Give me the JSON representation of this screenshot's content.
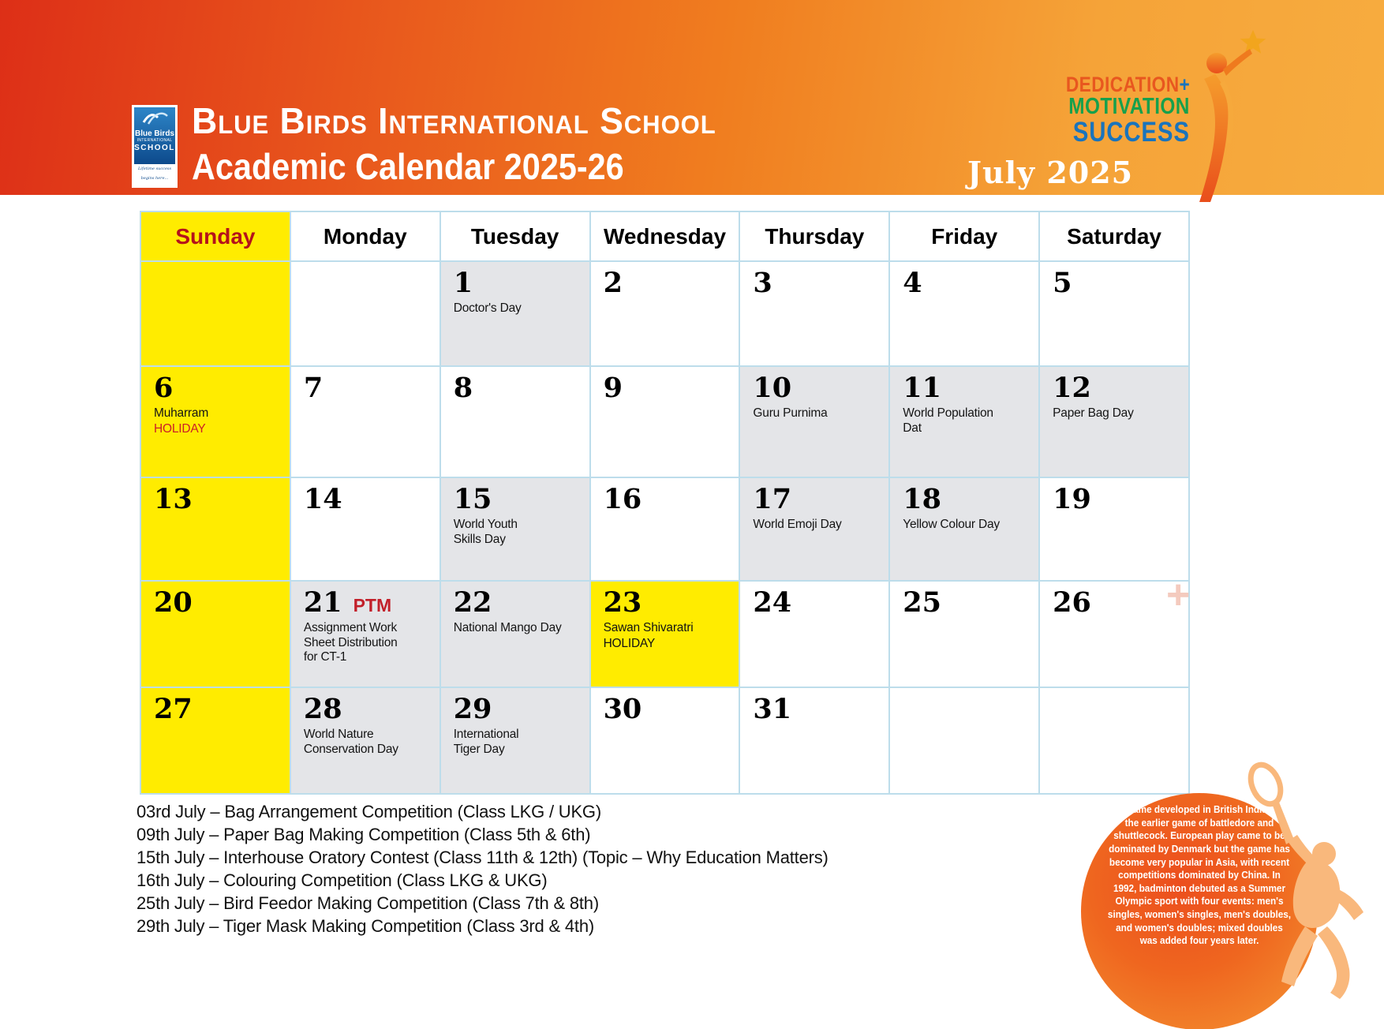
{
  "header": {
    "school_name": "Blue Birds International School",
    "subtitle": "Academic Calendar 2025-26",
    "month_label": "July 2025",
    "logo": {
      "name": "Blue Birds",
      "line2": "INTERNATIONAL",
      "line3": "SCHOOL",
      "tagline": "Lifetime success begins here..."
    },
    "motto": {
      "word1": "DEDICATION",
      "plus": "+",
      "word2": "MOTIVATION",
      "word3": "SUCCESS"
    }
  },
  "colors": {
    "band_red": "#dd2f17",
    "band_orange": "#f7ac3f",
    "sunday_yellow": "#ffec00",
    "sunday_text_red": "#b5121b",
    "holiday_red": "#cc2026",
    "ptm_red": "#c2202a",
    "event_cell_gray": "#e4e5e8",
    "grid_line_blue": "#bdddeb",
    "motto_dedication": "#e8571f",
    "motto_motivation": "#17a04c",
    "motto_success_blue": "#1a74bc",
    "circle_orange": "#ef661f"
  },
  "calendar": {
    "weekday_headers": [
      "Sunday",
      "Monday",
      "Tuesday",
      "Wednesday",
      "Thursday",
      "Friday",
      "Saturday"
    ],
    "cells": [
      {
        "day": "",
        "bg": "yellow"
      },
      {
        "day": "",
        "bg": "white"
      },
      {
        "day": "1",
        "event": "Doctor's Day",
        "bg": "gray"
      },
      {
        "day": "2",
        "bg": "white"
      },
      {
        "day": "3",
        "bg": "white"
      },
      {
        "day": "4",
        "bg": "white"
      },
      {
        "day": "5",
        "bg": "white"
      },
      {
        "day": "6",
        "event": "Muharram",
        "badge": "HOLIDAY",
        "badge_color": "red",
        "bg": "yellow"
      },
      {
        "day": "7",
        "bg": "white"
      },
      {
        "day": "8",
        "bg": "white"
      },
      {
        "day": "9",
        "bg": "white"
      },
      {
        "day": "10",
        "event": "Guru Purnima",
        "bg": "gray"
      },
      {
        "day": "11",
        "event": "World Population\nDat",
        "bg": "gray"
      },
      {
        "day": "12",
        "event": "Paper Bag Day",
        "bg": "gray"
      },
      {
        "day": "13",
        "bg": "yellow"
      },
      {
        "day": "14",
        "bg": "white"
      },
      {
        "day": "15",
        "event": "World Youth\nSkills Day",
        "bg": "gray"
      },
      {
        "day": "16",
        "bg": "white"
      },
      {
        "day": "17",
        "event": "World Emoji Day",
        "bg": "gray"
      },
      {
        "day": "18",
        "event": "Yellow Colour Day",
        "bg": "gray"
      },
      {
        "day": "19",
        "bg": "white"
      },
      {
        "day": "20",
        "bg": "yellow"
      },
      {
        "day": "21",
        "tag": "PTM",
        "event": "Assignment Work\nSheet Distribution\nfor CT-1",
        "bg": "gray"
      },
      {
        "day": "22",
        "event": "National Mango Day",
        "bg": "gray"
      },
      {
        "day": "23",
        "event": "Sawan Shivaratri",
        "badge": "HOLIDAY",
        "badge_color": "black",
        "bg": "yellow"
      },
      {
        "day": "24",
        "bg": "white"
      },
      {
        "day": "25",
        "bg": "white"
      },
      {
        "day": "26",
        "bg": "white"
      },
      {
        "day": "27",
        "bg": "yellow"
      },
      {
        "day": "28",
        "event": "World Nature\nConservation Day",
        "bg": "gray"
      },
      {
        "day": "29",
        "event": "International\nTiger Day",
        "bg": "gray"
      },
      {
        "day": "30",
        "bg": "white"
      },
      {
        "day": "31",
        "bg": "white"
      },
      {
        "day": "",
        "bg": "white"
      },
      {
        "day": "",
        "bg": "white"
      }
    ]
  },
  "notes": [
    "03rd July – Bag Arrangement Competition (Class LKG / UKG)",
    "09th July – Paper Bag Making Competition (Class 5th & 6th)",
    "15th July – Interhouse Oratory Contest (Class 11th & 12th) (Topic – Why Education Matters)",
    "16th July – Colouring Competition (Class LKG & UKG)",
    "25th July – Bird Feedor Making Competition (Class 7th & 8th)",
    "29th July – Tiger Mask Making Competition (Class 3rd & 4th)"
  ],
  "fact_circle": {
    "text": "The game developed in British India from the earlier game of battledore and shuttlecock. European play came to be dominated by Denmark but the game has become very popular in Asia, with recent competitions dominated by China. In 1992, badminton debuted as a Summer Olympic sport with four events: men's singles, women's singles, men's doubles, and women's doubles; mixed doubles was added four years later."
  }
}
